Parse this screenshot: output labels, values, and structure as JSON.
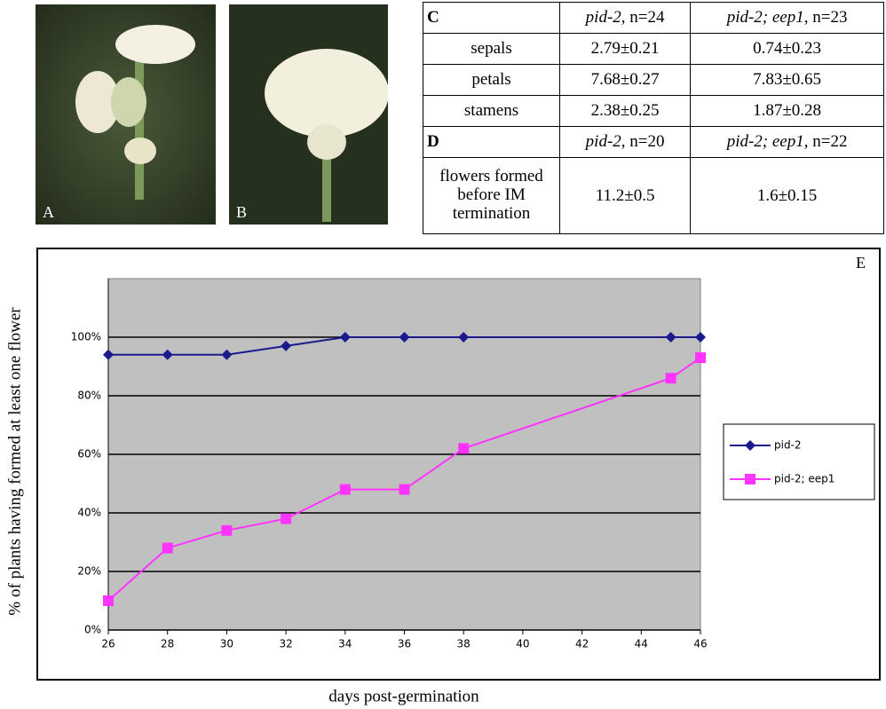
{
  "panels": {
    "a": "A",
    "b": "B"
  },
  "table": {
    "c_header": {
      "label": "C",
      "col1": {
        "genotype": "pid-2",
        "n": ", n=24"
      },
      "col2": {
        "genotype": "pid-2; eep1",
        "n": ", n=23"
      }
    },
    "c_rows": [
      [
        "sepals",
        "2.79±0.21",
        "0.74±0.23"
      ],
      [
        "petals",
        "7.68±0.27",
        "7.83±0.65"
      ],
      [
        "stamens",
        "2.38±0.25",
        "1.87±0.28"
      ]
    ],
    "d_header": {
      "label": "D",
      "col1": {
        "genotype": "pid-2",
        "n": ", n=20"
      },
      "col2": {
        "genotype": "pid-2; eep1",
        "n": ", n=22"
      }
    },
    "d_rows": [
      [
        "flowers formed before IM termination",
        "11.2±0.5",
        "1.6±0.15"
      ]
    ]
  },
  "chart_data": {
    "type": "line",
    "annotation": "E",
    "x_label": "days post-germination",
    "y_label": "% of plants having formed at least one flower",
    "x": [
      26,
      28,
      30,
      32,
      34,
      36,
      38,
      45,
      46
    ],
    "series": [
      {
        "name": "pid-2",
        "color": "#1a1a8c",
        "marker": "diamond",
        "values": [
          94,
          94,
          94,
          97,
          100,
          100,
          100,
          100,
          100
        ]
      },
      {
        "name": "pid-2; eep1",
        "color": "#ff33ff",
        "marker": "square",
        "values": [
          10,
          28,
          34,
          38,
          48,
          48,
          62,
          86,
          93
        ]
      }
    ],
    "xlim": [
      26,
      46
    ],
    "xticks": [
      26,
      28,
      30,
      32,
      34,
      36,
      38,
      40,
      42,
      44,
      46
    ],
    "ylim": [
      0,
      120
    ],
    "yticks": [
      {
        "value": 0,
        "label": "0%"
      },
      {
        "value": 20,
        "label": "20%"
      },
      {
        "value": 40,
        "label": "40%"
      },
      {
        "value": 60,
        "label": "60%"
      },
      {
        "value": 80,
        "label": "80%"
      },
      {
        "value": 100,
        "label": "100%"
      }
    ],
    "grid": true,
    "legend": "right"
  }
}
